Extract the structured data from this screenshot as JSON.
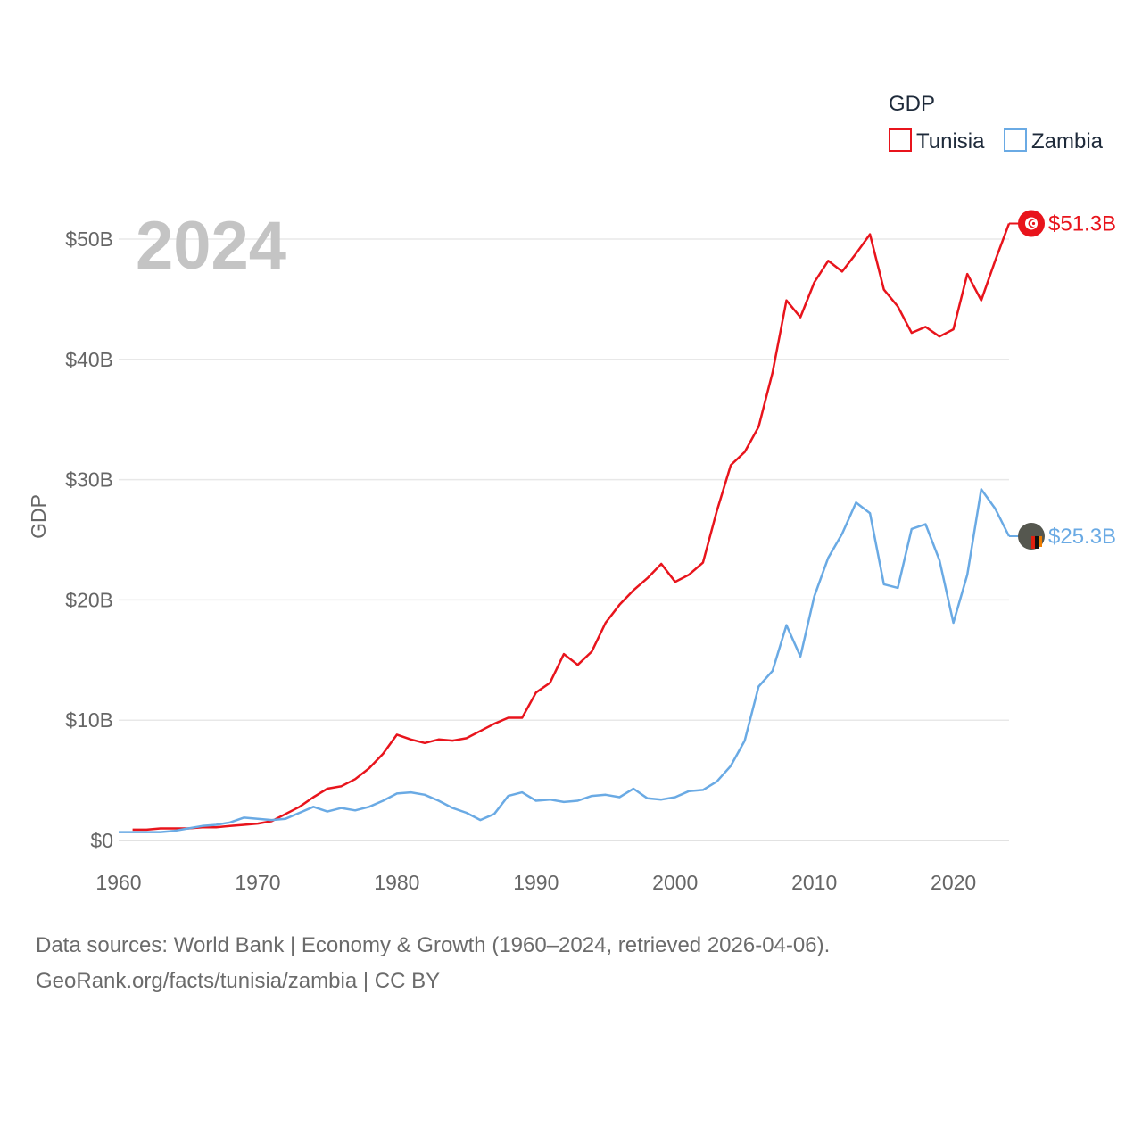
{
  "chart_data": {
    "type": "line",
    "title": "GDP",
    "ylabel": "GDP",
    "xlabel": "",
    "current_year_label": "2024",
    "x_ticks": [
      1960,
      1970,
      1980,
      1990,
      2000,
      2010,
      2020
    ],
    "y_ticks": [
      {
        "value": 0,
        "label": "$0"
      },
      {
        "value": 10,
        "label": "$10B"
      },
      {
        "value": 20,
        "label": "$20B"
      },
      {
        "value": 30,
        "label": "$30B"
      },
      {
        "value": 40,
        "label": "$40B"
      },
      {
        "value": 50,
        "label": "$50B"
      }
    ],
    "xlim": [
      1960,
      2024
    ],
    "ylim": [
      0,
      52
    ],
    "units": "billion USD",
    "legend_title": "GDP",
    "legend_position": "top-right",
    "series": [
      {
        "name": "Tunisia",
        "color": "#e8141c",
        "end_label": "$51.3B",
        "marker_icon": "tunisia-flag-icon",
        "start_year": 1961,
        "values": [
          0.9,
          0.9,
          1.0,
          1.0,
          1.0,
          1.1,
          1.1,
          1.2,
          1.3,
          1.4,
          1.6,
          2.2,
          2.8,
          3.6,
          4.3,
          4.5,
          5.1,
          6.0,
          7.2,
          8.8,
          8.4,
          8.1,
          8.4,
          8.3,
          8.5,
          9.1,
          9.7,
          10.2,
          10.2,
          12.3,
          13.1,
          15.5,
          14.6,
          15.7,
          18.1,
          19.6,
          20.8,
          21.8,
          23.0,
          21.5,
          22.1,
          23.1,
          27.4,
          31.2,
          32.3,
          34.4,
          38.9,
          44.9,
          43.5,
          46.4,
          48.2,
          47.3,
          48.8,
          50.4,
          45.8,
          44.4,
          42.2,
          42.7,
          41.9,
          42.5,
          47.1,
          44.9,
          48.2,
          51.3
        ]
      },
      {
        "name": "Zambia",
        "color": "#6aaae4",
        "end_label": "$25.3B",
        "marker_icon": "zambia-flag-icon",
        "start_year": 1960,
        "values": [
          0.7,
          0.7,
          0.7,
          0.7,
          0.8,
          1.0,
          1.2,
          1.3,
          1.5,
          1.9,
          1.8,
          1.7,
          1.8,
          2.3,
          2.8,
          2.4,
          2.7,
          2.5,
          2.8,
          3.3,
          3.9,
          4.0,
          3.8,
          3.3,
          2.7,
          2.3,
          1.7,
          2.2,
          3.7,
          4.0,
          3.3,
          3.4,
          3.2,
          3.3,
          3.7,
          3.8,
          3.6,
          4.3,
          3.5,
          3.4,
          3.6,
          4.1,
          4.2,
          4.9,
          6.2,
          8.3,
          12.8,
          14.1,
          17.9,
          15.3,
          20.3,
          23.5,
          25.5,
          28.1,
          27.2,
          21.3,
          21.0,
          25.9,
          26.3,
          23.3,
          18.1,
          22.1,
          29.2,
          27.6,
          25.3
        ]
      }
    ]
  },
  "footer": {
    "line1": "Data sources: World Bank | Economy & Growth (1960–2024, retrieved 2026-04-06).",
    "line2": "GeoRank.org/facts/tunisia/zambia | CC BY"
  }
}
